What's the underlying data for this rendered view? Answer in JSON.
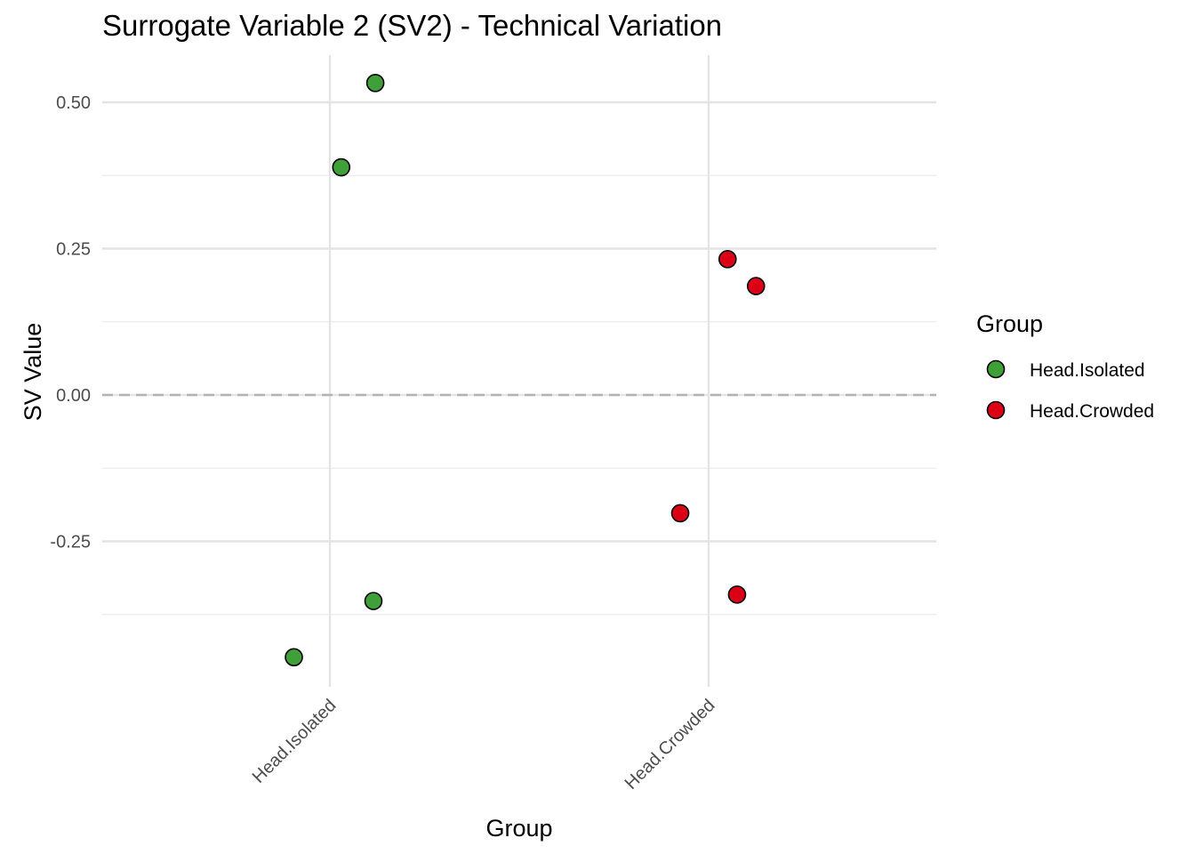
{
  "chart_data": {
    "type": "scatter",
    "title": "Surrogate Variable 2 (SV2) - Technical Variation",
    "xlabel": "Group",
    "ylabel": "SV Value",
    "categories": [
      "Head.Isolated",
      "Head.Crowded"
    ],
    "ylim": [
      -0.5,
      0.58
    ],
    "y_ticks": [
      -0.25,
      0.0,
      0.25,
      0.5
    ],
    "y_tick_labels": [
      "-0.25",
      "0.00",
      "0.25",
      "0.50"
    ],
    "reference_line": {
      "y": 0,
      "style": "dashed",
      "color": "#b3b3b3"
    },
    "grid": true,
    "legend": {
      "title": "Group",
      "position": "right"
    },
    "series": [
      {
        "name": "Head.Isolated",
        "color": "#3fa03a",
        "points": [
          {
            "category": "Head.Isolated",
            "jitter": 0.12,
            "y": 0.533
          },
          {
            "category": "Head.Isolated",
            "jitter": 0.03,
            "y": 0.389
          },
          {
            "category": "Head.Isolated",
            "jitter": 0.115,
            "y": -0.352
          },
          {
            "category": "Head.Isolated",
            "jitter": -0.095,
            "y": -0.448
          }
        ]
      },
      {
        "name": "Head.Crowded",
        "color": "#dc0016",
        "points": [
          {
            "category": "Head.Crowded",
            "jitter": 0.05,
            "y": 0.232
          },
          {
            "category": "Head.Crowded",
            "jitter": 0.125,
            "y": 0.186
          },
          {
            "category": "Head.Crowded",
            "jitter": -0.075,
            "y": -0.202
          },
          {
            "category": "Head.Crowded",
            "jitter": 0.075,
            "y": -0.341
          }
        ]
      }
    ]
  }
}
